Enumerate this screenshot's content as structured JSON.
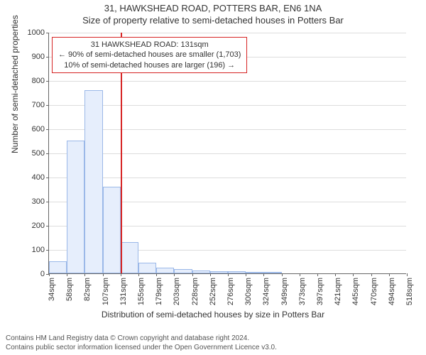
{
  "title": "31, HAWKSHEAD ROAD, POTTERS BAR, EN6 1NA",
  "subtitle": "Size of property relative to semi-detached houses in Potters Bar",
  "y_axis_label": "Number of semi-detached properties",
  "x_axis_label": "Distribution of semi-detached houses by size in Potters Bar",
  "credits": {
    "line1": "Contains HM Land Registry data © Crown copyright and database right 2024.",
    "line2": "Contains public sector information licensed under the Open Government Licence v3.0."
  },
  "chart": {
    "type": "histogram",
    "ylim": [
      0,
      1000
    ],
    "ytick_step": 100,
    "background_color": "#ffffff",
    "grid_color": "#dddddd",
    "axis_color": "#666666",
    "bar_fill": "#e6eefc",
    "bar_border": "#9bb8e8",
    "marker_color": "#d62424",
    "label_fontsize": 11,
    "axis_label_fontsize": 12,
    "title_fontsize": 13,
    "x_categories": [
      "34sqm",
      "58sqm",
      "82sqm",
      "107sqm",
      "131sqm",
      "155sqm",
      "179sqm",
      "203sqm",
      "228sqm",
      "252sqm",
      "276sqm",
      "300sqm",
      "324sqm",
      "349sqm",
      "373sqm",
      "397sqm",
      "421sqm",
      "445sqm",
      "470sqm",
      "494sqm",
      "518sqm"
    ],
    "bar_values": [
      50,
      550,
      760,
      360,
      130,
      45,
      25,
      18,
      12,
      10,
      8,
      6,
      4,
      0,
      0,
      0,
      0,
      0,
      0,
      0
    ],
    "marker_index": 4,
    "callout": {
      "line1": "31 HAWKSHEAD ROAD: 131sqm",
      "line2": "← 90% of semi-detached houses are smaller (1,703)",
      "line3": "10% of semi-detached houses are larger (196) →"
    }
  }
}
